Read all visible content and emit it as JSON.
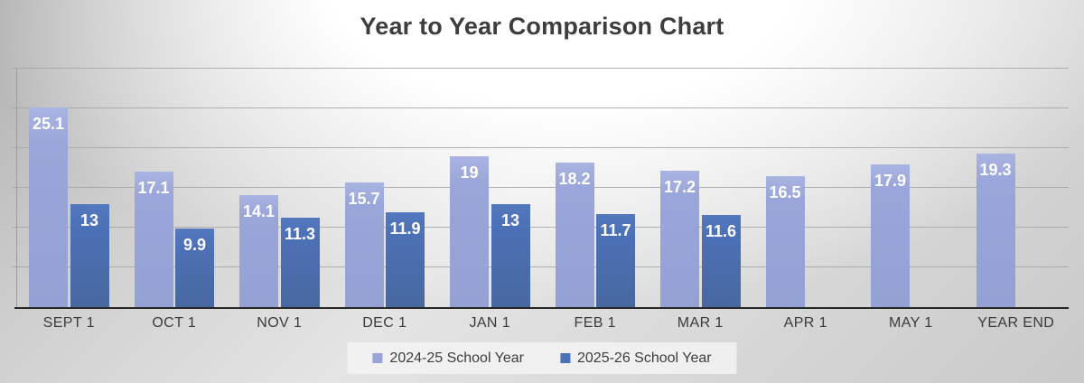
{
  "title": "Year to Year Comparison Chart",
  "colors": {
    "series1": "#98a4d7",
    "series2": "#4c70b5",
    "axis_line": "#262626",
    "gridline": "#a6a6a6",
    "title_text": "#3d3d3d",
    "value_label_text": "#ffffff"
  },
  "legend": {
    "position": "bottom",
    "items": [
      {
        "label": "2024-25 School Year",
        "color": "#98a4d7"
      },
      {
        "label": "2025-26 School Year",
        "color": "#4c70b5"
      }
    ]
  },
  "chart_data": {
    "type": "bar",
    "title": "Year to Year Comparison Chart",
    "categories": [
      "SEPT 1",
      "OCT 1",
      "NOV 1",
      "DEC 1",
      "JAN 1",
      "FEB 1",
      "MAR 1",
      "APR 1",
      "MAY 1",
      "YEAR END"
    ],
    "series": [
      {
        "name": "2024-25 School Year",
        "values": [
          25.1,
          17.1,
          14.1,
          15.7,
          19,
          18.2,
          17.2,
          16.5,
          17.9,
          19.3
        ]
      },
      {
        "name": "2025-26 School Year",
        "values": [
          13,
          9.9,
          11.3,
          11.9,
          13,
          11.7,
          11.6,
          null,
          null,
          null
        ]
      }
    ],
    "xlabel": "",
    "ylabel": "",
    "ylim": [
      0,
      30
    ],
    "gridline_interval": 5,
    "y_tick_labels_visible": false,
    "data_labels": "inside-end",
    "legend_position": "bottom"
  }
}
